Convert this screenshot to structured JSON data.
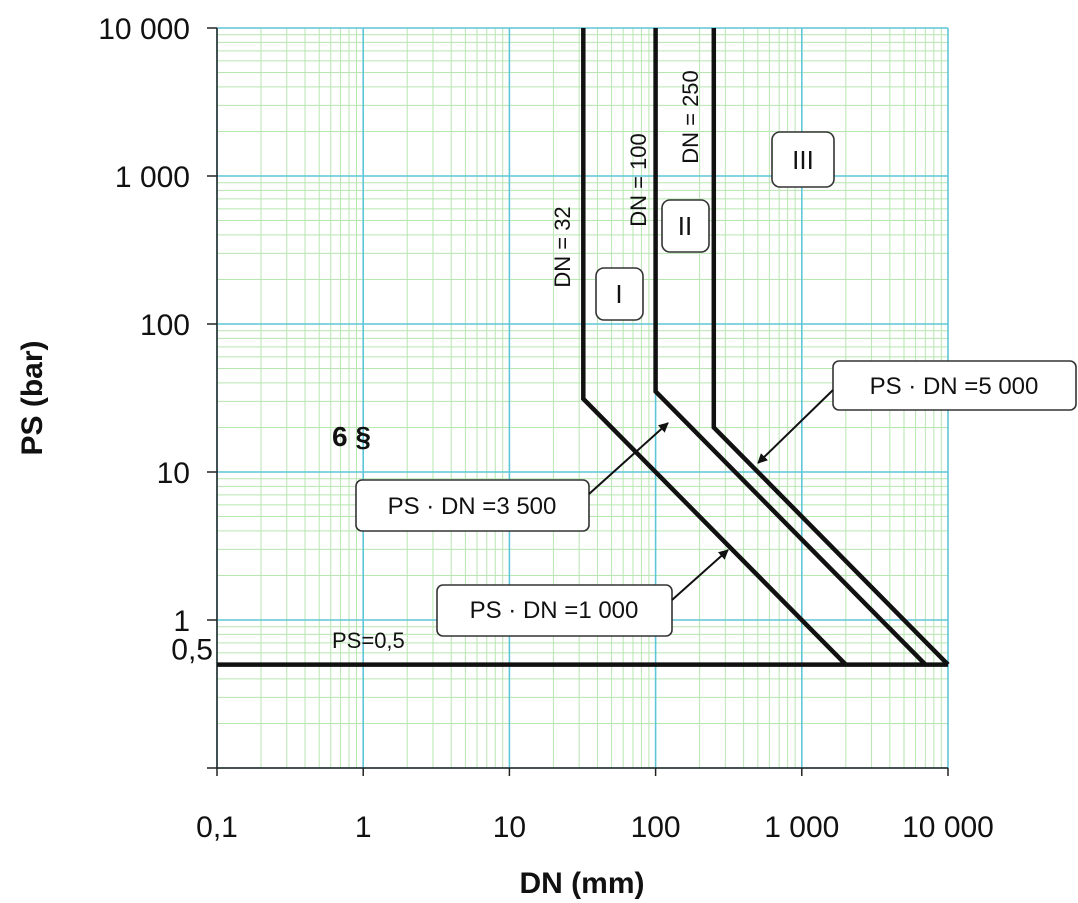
{
  "chart_data": {
    "type": "line",
    "title": "",
    "xlabel": "DN (mm)",
    "ylabel": "PS (bar)",
    "xscale": "log",
    "yscale": "log",
    "xlim": [
      0.1,
      10000
    ],
    "ylim": [
      0.1,
      10000
    ],
    "grid": true,
    "x_ticks": [
      {
        "value": 0.1,
        "label": "0,1"
      },
      {
        "value": 1,
        "label": "1"
      },
      {
        "value": 10,
        "label": "10"
      },
      {
        "value": 100,
        "label": "100"
      },
      {
        "value": 1000,
        "label": "1 000"
      },
      {
        "value": 10000,
        "label": "10 000"
      }
    ],
    "y_ticks": [
      {
        "value": 0.5,
        "label": "0,5"
      },
      {
        "value": 1,
        "label": "1"
      },
      {
        "value": 10,
        "label": "10"
      },
      {
        "value": 100,
        "label": "100"
      },
      {
        "value": 1000,
        "label": "1 000"
      },
      {
        "value": 10000,
        "label": "10 000"
      }
    ],
    "series": [
      {
        "name": "",
        "x": [
          0.1,
          10000
        ],
        "y": [
          0.5,
          0.5
        ]
      },
      {
        "name": "",
        "x": [
          32,
          32,
          2000
        ],
        "y": [
          10000,
          31.25,
          0.5
        ]
      },
      {
        "name": "",
        "x": [
          100,
          100,
          7000
        ],
        "y": [
          10000,
          35,
          0.5
        ]
      },
      {
        "name": "",
        "x": [
          250,
          250,
          10000
        ],
        "y": [
          10000,
          20,
          0.5
        ]
      }
    ],
    "annotations": {
      "ps05": "PS=0,5",
      "section": "6 §",
      "dn32": "DN = 32",
      "dn100": "DN = 100",
      "dn250": "DN = 250",
      "cat1": "I",
      "cat2": "II",
      "cat3": "III",
      "ps5000": "PS · DN =5 000",
      "ps3500": "PS · DN =3 500",
      "ps1000": "PS · DN =1 000"
    },
    "colors": {
      "grid_major": "#5fc6d8",
      "grid_minor": "#b7e6b0",
      "lines": "#111111"
    }
  }
}
